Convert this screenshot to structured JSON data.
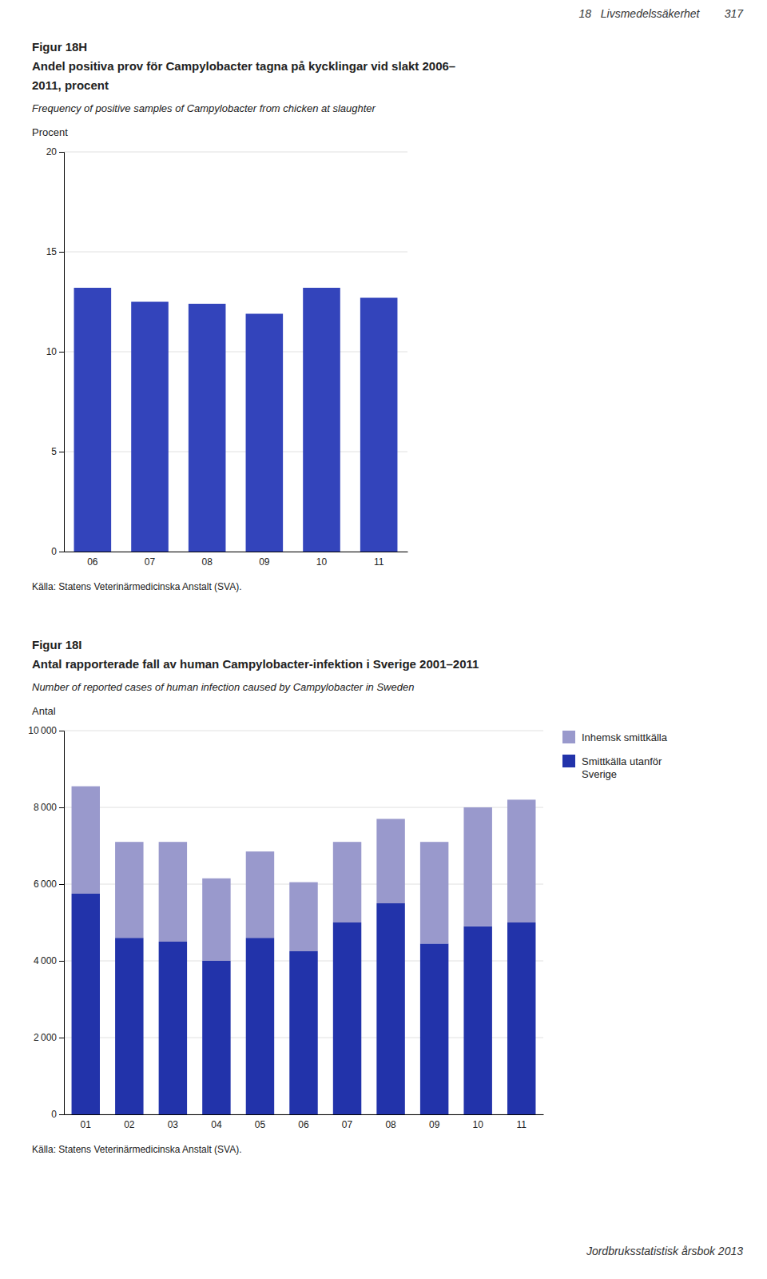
{
  "header_text": "18   Livsmedelssäkerhet        317",
  "footer_text": "Jordbruksstatistisk årsbok 2013",
  "chart_data": [
    {
      "type": "bar",
      "title": [
        "Figur 18H",
        "Andel positiva prov för Campylobacter tagna på kycklingar vid slakt 2006–",
        "2011, procent"
      ],
      "subtitle": "Frequency of positive samples of Campylobacter from chicken at slaughter",
      "ylabel": "Procent",
      "categories": [
        "06",
        "07",
        "08",
        "09",
        "10",
        "11"
      ],
      "values": [
        13.2,
        12.5,
        12.4,
        11.9,
        13.2,
        12.7
      ],
      "color": "#3344bb",
      "ylim": [
        0,
        20
      ],
      "yticks": [
        0,
        5,
        10,
        15,
        20
      ],
      "grid": true,
      "source": "Källa: Statens Veterinärmedicinska Anstalt (SVA)."
    },
    {
      "type": "bar",
      "stacked": true,
      "title": [
        "Figur 18I",
        "Antal rapporterade fall av human Campylobacter-infektion i Sverige 2001–2011"
      ],
      "subtitle": "Number of reported cases of human infection caused by Campylobacter in Sweden",
      "ylabel": "Antal",
      "categories": [
        "01",
        "02",
        "03",
        "04",
        "05",
        "06",
        "07",
        "08",
        "09",
        "10",
        "11"
      ],
      "series": [
        {
          "name": "Smittkälla utanför\nSverige",
          "color": "#2233aa",
          "values": [
            5750,
            4600,
            4500,
            4000,
            4600,
            4250,
            5000,
            5500,
            4450,
            4900,
            5000
          ]
        },
        {
          "name": "Inhemsk smittkälla",
          "color": "#9999cc",
          "values": [
            2800,
            2500,
            2600,
            2150,
            2250,
            1800,
            2100,
            2200,
            2650,
            3100,
            3200
          ]
        }
      ],
      "ylim": [
        0,
        10000
      ],
      "yticks": [
        0,
        {
          "value": 2000,
          "label": "2 000"
        },
        {
          "value": 4000,
          "label": "4 000"
        },
        {
          "value": 6000,
          "label": "6 000"
        },
        {
          "value": 8000,
          "label": "8 000"
        },
        {
          "value": 10000,
          "label": "10 000"
        }
      ],
      "grid": true,
      "legend": "right",
      "source": "Källa: Statens Veterinärmedicinska Anstalt (SVA)."
    }
  ]
}
